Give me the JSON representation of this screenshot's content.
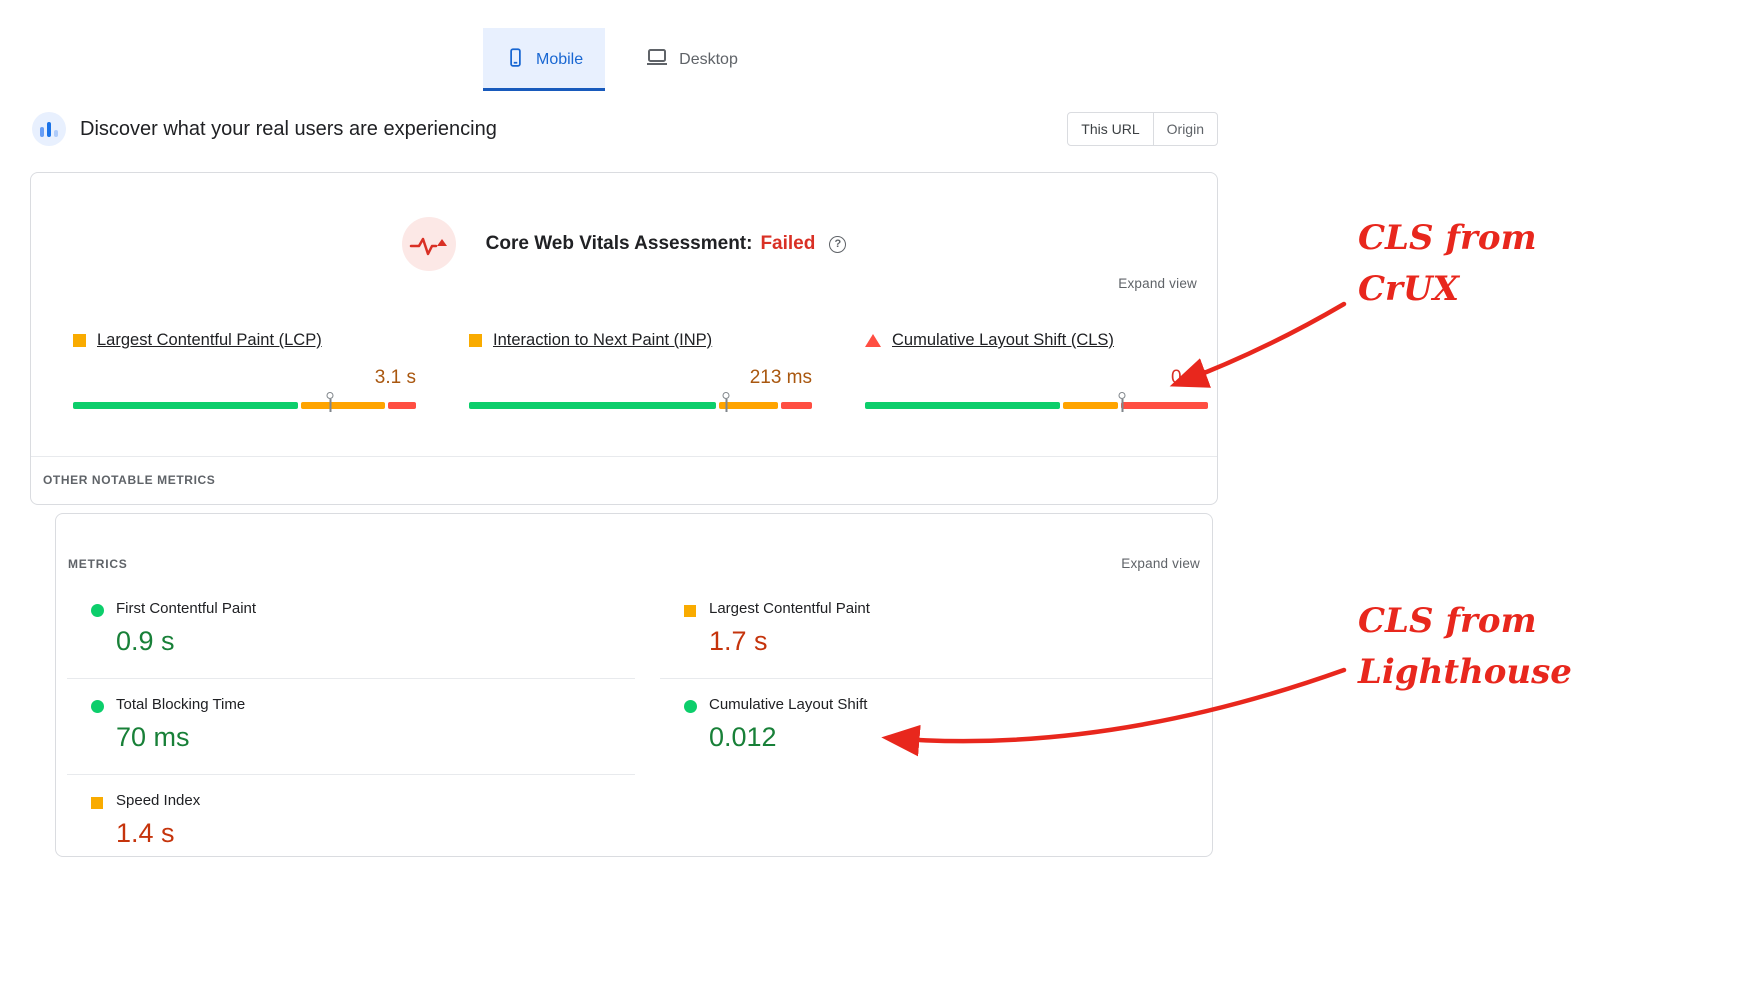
{
  "device_tabs": [
    {
      "label": "Mobile",
      "active": true
    },
    {
      "label": "Desktop",
      "active": false
    }
  ],
  "field_section": {
    "title": "Discover what your real users are experiencing",
    "scope_toggle": [
      {
        "label": "This URL",
        "active": true
      },
      {
        "label": "Origin",
        "active": false
      }
    ],
    "assessment": {
      "label": "Core Web Vitals Assessment:",
      "result": "Failed"
    },
    "expand_view": "Expand view",
    "metrics": [
      {
        "name": "Largest Contentful Paint (LCP)",
        "value": "3.1 s",
        "status": "needs-improvement",
        "bar": {
          "green": 64,
          "orange": 24,
          "red": 8,
          "marker": 75
        }
      },
      {
        "name": "Interaction to Next Paint (INP)",
        "value": "213 ms",
        "status": "needs-improvement",
        "bar": {
          "green": 71,
          "orange": 17,
          "red": 9,
          "marker": 75
        }
      },
      {
        "name": "Cumulative Layout Shift (CLS)",
        "value": "0.28",
        "status": "poor",
        "bar": {
          "green": 56,
          "orange": 16,
          "red": 25,
          "marker": 75
        }
      }
    ],
    "other_notable_metrics_label": "OTHER NOTABLE METRICS"
  },
  "lab_section": {
    "header": "METRICS",
    "expand_view": "Expand view",
    "columns": {
      "left": [
        {
          "name": "First Contentful Paint",
          "value": "0.9 s",
          "status": "good"
        },
        {
          "name": "Total Blocking Time",
          "value": "70 ms",
          "status": "good"
        },
        {
          "name": "Speed Index",
          "value": "1.4 s",
          "status": "average"
        }
      ],
      "right": [
        {
          "name": "Largest Contentful Paint",
          "value": "1.7 s",
          "status": "average"
        },
        {
          "name": "Cumulative Layout Shift",
          "value": "0.012",
          "status": "good"
        }
      ]
    }
  },
  "annotations": [
    {
      "lines": [
        "CLS from",
        "CrUX"
      ]
    },
    {
      "lines": [
        "CLS from",
        "Lighthouse"
      ]
    }
  ],
  "icons": {
    "help_glyph": "?"
  },
  "colors": {
    "accent_blue": "#1967d2",
    "tab_bg_blue": "#e8f0fe",
    "failed_red": "#d93025",
    "good_green_text": "#188038",
    "orange_text": "#a9570f",
    "average_text": "#c5340c",
    "bar_green": "#0cce6b",
    "bar_orange": "#ffa400",
    "bar_red": "#ff4e42",
    "annotation_red": "#e8271d"
  }
}
